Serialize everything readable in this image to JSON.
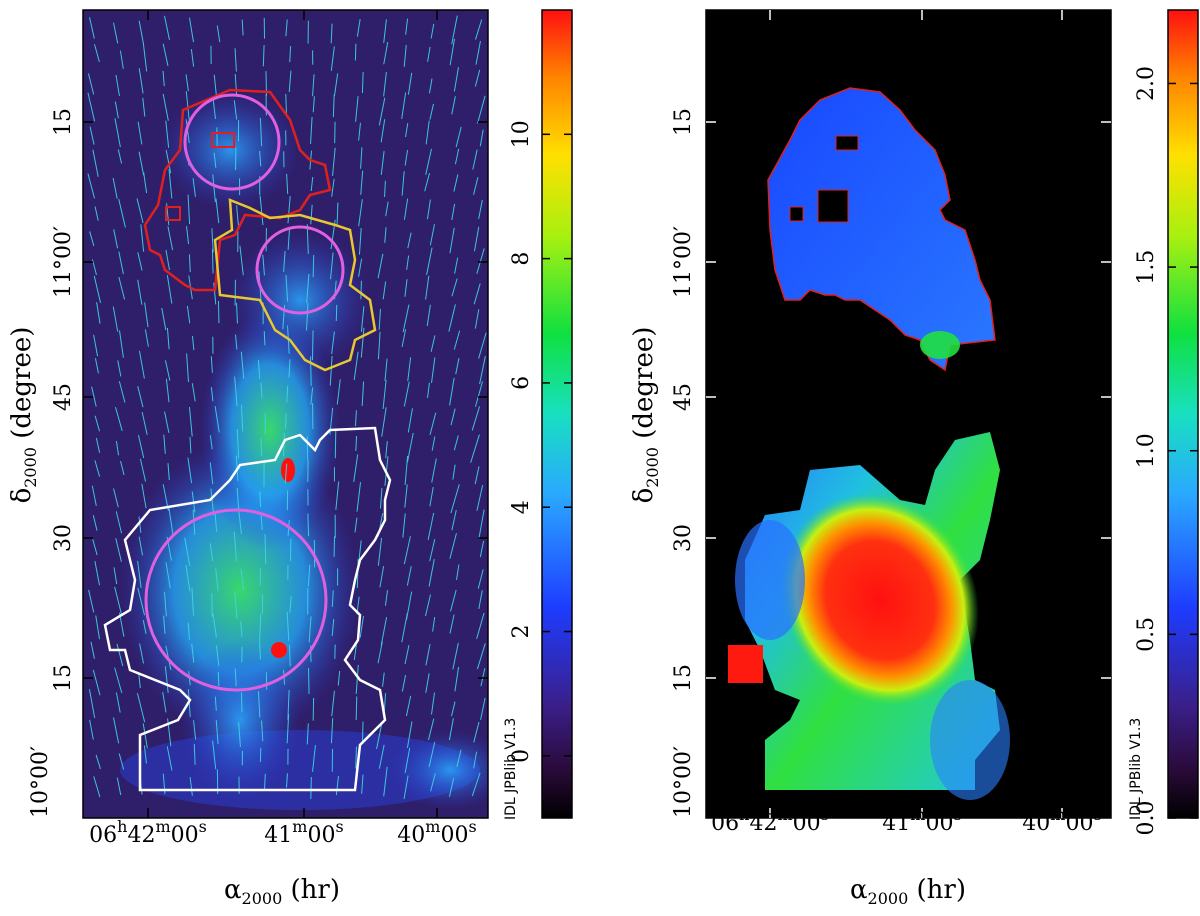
{
  "chart_data": [
    {
      "type": "heatmap",
      "panel": "left",
      "xlabel": "α2000 (hr)",
      "ylabel": "δ2000 (degree)",
      "x_ticks": [
        {
          "h": "06",
          "m": "42",
          "s": "00"
        },
        {
          "h": "",
          "m": "41",
          "s": "00"
        },
        {
          "h": "",
          "m": "40",
          "s": "00"
        }
      ],
      "y_ticks": [
        "10°00′",
        "15",
        "30",
        "45",
        "11°00′",
        "15"
      ],
      "colorbar": {
        "min": -1,
        "max": 12,
        "ticks": [
          "0",
          "2",
          "4",
          "6",
          "8",
          "10"
        ],
        "tick_values": [
          0,
          2,
          4,
          6,
          8,
          10
        ]
      },
      "credit": "IDL JPBlib V1.3",
      "overlays": {
        "vectors_color": "#3fd6e6",
        "circles_color": "#e060e0",
        "region_colors": [
          "#e02020",
          "#e8c830",
          "#ffffff"
        ]
      }
    },
    {
      "type": "heatmap",
      "panel": "right",
      "xlabel": "α2000 (hr)",
      "ylabel": "δ2000 (degree)",
      "x_ticks": [
        {
          "h": "06",
          "m": "42",
          "s": "00"
        },
        {
          "h": "",
          "m": "41",
          "s": "00"
        },
        {
          "h": "",
          "m": "40",
          "s": "00"
        }
      ],
      "y_ticks": [
        "10°00′",
        "15",
        "30",
        "45",
        "11°00′",
        "15"
      ],
      "colorbar": {
        "min": 0.0,
        "max": 2.2,
        "ticks": [
          "0.0",
          "0.5",
          "1.0",
          "1.5",
          "2.0"
        ],
        "tick_values": [
          0.0,
          0.5,
          1.0,
          1.5,
          2.0
        ]
      },
      "credit": "IDL JPBlib V1.3"
    }
  ]
}
